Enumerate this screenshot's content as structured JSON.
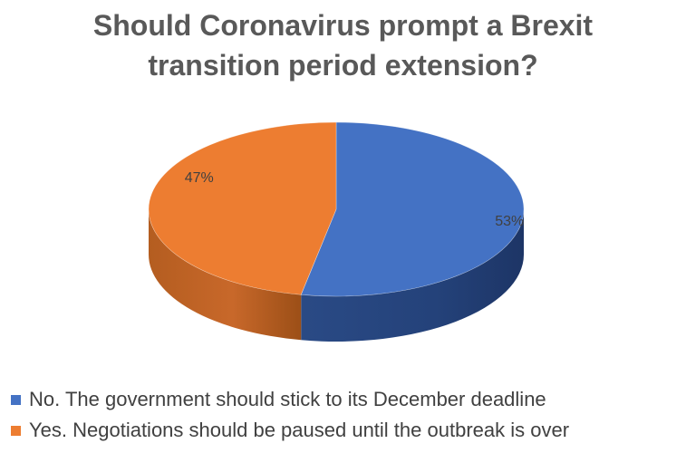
{
  "chart_data": {
    "type": "pie",
    "title_lines": [
      "Should Coronavirus prompt a Brexit",
      "transition period extension?"
    ],
    "slices": [
      {
        "label": "No. The government should stick to its December deadline",
        "value": 53,
        "display": "53%",
        "color": "#4472C4"
      },
      {
        "label": "Yes. Negotiations should be paused until the outbreak is over",
        "value": 47,
        "display": "47%",
        "color": "#ED7D31"
      }
    ],
    "style": "3d",
    "legend_position": "bottom-left"
  }
}
